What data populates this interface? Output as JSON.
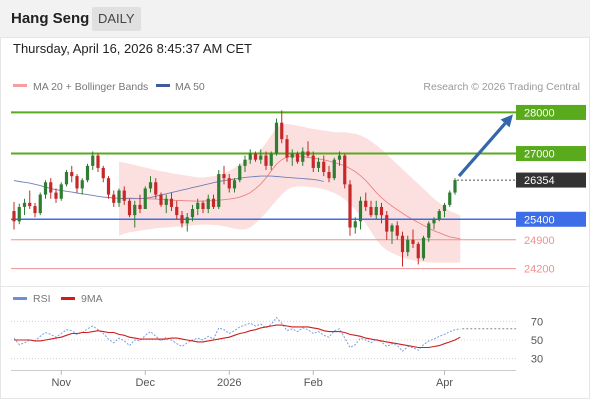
{
  "header": {
    "instrument": "Hang Seng",
    "period": "DAILY",
    "datetime": "Thursday, April 16, 2026 8:45:37 AM CET"
  },
  "legend": {
    "bollinger": "MA 20 + Bollinger Bands",
    "ma50": "MA 50",
    "credit": "Research © 2026 Trading Central",
    "rsi": "RSI",
    "rsi_ma": "9MA"
  },
  "colors": {
    "bull": "#2e7d32",
    "bear": "#c62828",
    "resistance": "#5aaa1e",
    "support": "#3d6ee8",
    "minor_support": "#f09090",
    "current": "#333333",
    "arrow": "#3366aa",
    "band": "#fbd5d5",
    "ma50": "#6f7fb8",
    "rsi": "#7b9fe0",
    "rsi_ma": "#cc1f1f"
  },
  "chart_data": [
    {
      "type": "candlestick",
      "title": "",
      "x_ticks": [
        "Nov",
        "Dec",
        "2026",
        "Feb",
        "Apr"
      ],
      "ylim": [
        23800,
        28400
      ],
      "y_levels": [
        {
          "value": 28000,
          "label": "28000",
          "kind": "resistance"
        },
        {
          "value": 27000,
          "label": "27000",
          "kind": "resistance"
        },
        {
          "value": 26354,
          "label": "26354",
          "kind": "current"
        },
        {
          "value": 25400,
          "label": "25400",
          "kind": "support"
        },
        {
          "value": 24900,
          "label": "24900",
          "kind": "minor_support"
        },
        {
          "value": 24200,
          "label": "24200",
          "kind": "minor_support"
        }
      ],
      "candles": [
        [
          25600,
          25820,
          25150,
          25350
        ],
        [
          25350,
          25780,
          25280,
          25700
        ],
        [
          25700,
          25900,
          25500,
          25800
        ],
        [
          25800,
          26100,
          25650,
          25720
        ],
        [
          25720,
          25800,
          25450,
          25550
        ],
        [
          25550,
          26050,
          25500,
          26000
        ],
        [
          26000,
          26350,
          25900,
          26300
        ],
        [
          26300,
          26400,
          25900,
          26050
        ],
        [
          26050,
          26150,
          25800,
          25900
        ],
        [
          25900,
          26300,
          25850,
          26250
        ],
        [
          26250,
          26600,
          26200,
          26550
        ],
        [
          26550,
          26700,
          26300,
          26450
        ],
        [
          26450,
          26500,
          26050,
          26150
        ],
        [
          26150,
          26400,
          26000,
          26350
        ],
        [
          26350,
          26750,
          26300,
          26700
        ],
        [
          26700,
          27050,
          26600,
          26950
        ],
        [
          26950,
          27000,
          26550,
          26650
        ],
        [
          26650,
          26700,
          26300,
          26400
        ],
        [
          26400,
          26450,
          25900,
          26000
        ],
        [
          26000,
          26100,
          25700,
          25800
        ],
        [
          25800,
          26150,
          25700,
          26100
        ],
        [
          26100,
          26200,
          25750,
          25850
        ],
        [
          25850,
          25900,
          25450,
          25500
        ],
        [
          25500,
          25850,
          25200,
          25750
        ],
        [
          25750,
          26000,
          25550,
          25650
        ],
        [
          25650,
          26200,
          25650,
          26150
        ],
        [
          26150,
          26450,
          26050,
          26300
        ],
        [
          26300,
          26400,
          25900,
          26000
        ],
        [
          26000,
          26050,
          25700,
          25750
        ],
        [
          25750,
          26000,
          25550,
          25900
        ],
        [
          25900,
          26050,
          25600,
          25700
        ],
        [
          25700,
          25850,
          25400,
          25500
        ],
        [
          25500,
          25600,
          25200,
          25300
        ],
        [
          25300,
          25550,
          25100,
          25450
        ],
        [
          25450,
          25750,
          25350,
          25650
        ],
        [
          25650,
          25900,
          25500,
          25800
        ],
        [
          25800,
          25850,
          25550,
          25650
        ],
        [
          25650,
          26000,
          25550,
          25900
        ],
        [
          25900,
          26000,
          25650,
          25700
        ],
        [
          25700,
          26600,
          25650,
          26500
        ],
        [
          26500,
          26700,
          26250,
          26400
        ],
        [
          26400,
          26500,
          26050,
          26150
        ],
        [
          26150,
          26400,
          26050,
          26350
        ],
        [
          26350,
          26750,
          26300,
          26700
        ],
        [
          26700,
          26950,
          26550,
          26850
        ],
        [
          26850,
          27100,
          26750,
          27000
        ],
        [
          27000,
          27050,
          26800,
          26850
        ],
        [
          26850,
          27100,
          26750,
          26950
        ],
        [
          26950,
          27050,
          26600,
          26700
        ],
        [
          26700,
          27050,
          26600,
          27000
        ],
        [
          27000,
          27850,
          26950,
          27750
        ],
        [
          27750,
          28050,
          27250,
          27350
        ],
        [
          27350,
          27450,
          26800,
          26900
        ],
        [
          26900,
          27100,
          26700,
          27000
        ],
        [
          27000,
          27050,
          26750,
          26800
        ],
        [
          26800,
          27150,
          26700,
          27050
        ],
        [
          27050,
          27300,
          26900,
          26950
        ],
        [
          26950,
          27050,
          26550,
          26650
        ],
        [
          26650,
          26900,
          26550,
          26800
        ],
        [
          26800,
          26950,
          26450,
          26550
        ],
        [
          26550,
          26700,
          26300,
          26400
        ],
        [
          26400,
          26900,
          26350,
          26850
        ],
        [
          26850,
          27050,
          26700,
          26950
        ],
        [
          26950,
          27000,
          26150,
          26250
        ],
        [
          26250,
          26350,
          25000,
          25200
        ],
        [
          25200,
          25450,
          25050,
          25350
        ],
        [
          25350,
          25950,
          25150,
          25850
        ],
        [
          25850,
          26050,
          25600,
          25700
        ],
        [
          25700,
          25850,
          25450,
          25500
        ],
        [
          25500,
          25850,
          25400,
          25700
        ],
        [
          25700,
          25800,
          25300,
          25500
        ],
        [
          25500,
          25600,
          24900,
          25100
        ],
        [
          25100,
          25300,
          24800,
          25250
        ],
        [
          25250,
          25350,
          24900,
          25000
        ],
        [
          25000,
          25100,
          24250,
          24600
        ],
        [
          24600,
          25000,
          24500,
          24900
        ],
        [
          24900,
          25150,
          24700,
          24800
        ],
        [
          24800,
          24850,
          24300,
          24450
        ],
        [
          24450,
          25000,
          24400,
          24950
        ],
        [
          24950,
          25350,
          24850,
          25300
        ],
        [
          25300,
          25450,
          25150,
          25400
        ],
        [
          25400,
          25650,
          25350,
          25600
        ],
        [
          25600,
          25800,
          25450,
          25750
        ],
        [
          25750,
          26100,
          25700,
          26050
        ],
        [
          26050,
          26400,
          26000,
          26354
        ]
      ],
      "ma50": [
        26340,
        26320,
        26300,
        26280,
        26250,
        26220,
        26180,
        26150,
        26120,
        26100,
        26080,
        26060,
        26040,
        26020,
        26000,
        25980,
        25960,
        25940,
        25930,
        25920,
        25910,
        25900,
        25900,
        25900,
        25900,
        25910,
        25930,
        25960,
        25990,
        26020,
        26050,
        26080,
        26110,
        26140,
        26170,
        26200,
        26230,
        26260,
        26290,
        26320,
        26340,
        26360,
        26380,
        26400,
        26420,
        26430,
        26440,
        26450,
        26450,
        26450,
        26440,
        26430,
        26420,
        26410,
        26400,
        26390,
        26380,
        26370,
        26350,
        26320
      ],
      "bollinger": {
        "start_index": 20,
        "upper": [
          26800,
          26780,
          26750,
          26720,
          26690,
          26660,
          26630,
          26600,
          26570,
          26550,
          26520,
          26500,
          26480,
          26460,
          26440,
          26420,
          26420,
          26430,
          26450,
          26480,
          26520,
          26580,
          26650,
          26730,
          26820,
          26900,
          26990,
          27100,
          27250,
          27450,
          27620,
          27700,
          27720,
          27700,
          27680,
          27650,
          27620,
          27600,
          27580,
          27560,
          27540,
          27520,
          27520,
          27520,
          27500,
          27480,
          27440,
          27380,
          27300,
          27200,
          27100,
          26980,
          26860,
          26740,
          26620,
          26500,
          26380,
          26260,
          26140,
          26020,
          25900,
          25800,
          25700,
          25600,
          25550,
          25500
        ],
        "lower": [
          25000,
          25050,
          25080,
          25100,
          25120,
          25140,
          25160,
          25180,
          25190,
          25200,
          25210,
          25220,
          25230,
          25240,
          25250,
          25260,
          25270,
          25270,
          25260,
          25250,
          25230,
          25200,
          25170,
          25150,
          25150,
          25200,
          25300,
          25420,
          25560,
          25710,
          25860,
          26000,
          26120,
          26180,
          26200,
          26200,
          26190,
          26180,
          26160,
          26130,
          26090,
          26040,
          25970,
          25880,
          25770,
          25640,
          25480,
          25300,
          25100,
          24900,
          24750,
          24650,
          24580,
          24520,
          24470,
          24430,
          24400,
          24380,
          24360,
          24350,
          24340,
          24340,
          24340,
          24340,
          24345,
          24350
        ],
        "middle": [
          25900,
          25910,
          25915,
          25910,
          25905,
          25900,
          25895,
          25890,
          25880,
          25875,
          25865,
          25860,
          25855,
          25850,
          25845,
          25840,
          25845,
          25850,
          25855,
          25865,
          25875,
          25890,
          25910,
          25940,
          25985,
          26050,
          26145,
          26260,
          26405,
          26580,
          26740,
          26850,
          26920,
          26940,
          26940,
          26925,
          26905,
          26890,
          26870,
          26845,
          26815,
          26780,
          26745,
          26700,
          26635,
          26560,
          26460,
          26340,
          26200,
          26050,
          25925,
          25815,
          25720,
          25630,
          25545,
          25465,
          25390,
          25320,
          25250,
          25185,
          25120,
          25070,
          25020,
          24970,
          24948,
          24925
        ]
      },
      "projection": {
        "from": 26354,
        "to": 28000
      }
    },
    {
      "type": "line",
      "title": "RSI",
      "ylim": [
        20,
        80
      ],
      "y_ticks": [
        "70",
        "50",
        "30"
      ],
      "last_value": 62,
      "rsi": [
        52,
        45,
        47,
        50,
        49,
        54,
        58,
        56,
        53,
        57,
        61,
        60,
        56,
        58,
        62,
        65,
        61,
        57,
        51,
        47,
        52,
        49,
        44,
        50,
        49,
        55,
        59,
        54,
        49,
        53,
        50,
        46,
        43,
        47,
        50,
        52,
        50,
        54,
        51,
        63,
        61,
        57,
        60,
        64,
        66,
        68,
        65,
        67,
        63,
        67,
        74,
        68,
        60,
        62,
        59,
        63,
        61,
        57,
        59,
        55,
        53,
        60,
        62,
        52,
        42,
        45,
        52,
        50,
        47,
        51,
        48,
        43,
        46,
        44,
        38,
        43,
        42,
        39,
        45,
        49,
        51,
        54,
        56,
        59,
        61,
        62
      ],
      "ma9": [
        50,
        50,
        50,
        50,
        49,
        49,
        50,
        51,
        52,
        53,
        55,
        57,
        57,
        58,
        58,
        59,
        60,
        59,
        58,
        58,
        56,
        55,
        53,
        52,
        51,
        51,
        51,
        51,
        51,
        51,
        52,
        52,
        51,
        50,
        49,
        48,
        48,
        49,
        50,
        51,
        52,
        53,
        55,
        57,
        58,
        60,
        61,
        63,
        64,
        65,
        66,
        66,
        65,
        64,
        64,
        64,
        64,
        63,
        62,
        60,
        59,
        59,
        59,
        58,
        56,
        55,
        54,
        52,
        51,
        50,
        49,
        48,
        47,
        46,
        45,
        44,
        43,
        42,
        42,
        42,
        43,
        44,
        46,
        48,
        50,
        53
      ]
    }
  ]
}
